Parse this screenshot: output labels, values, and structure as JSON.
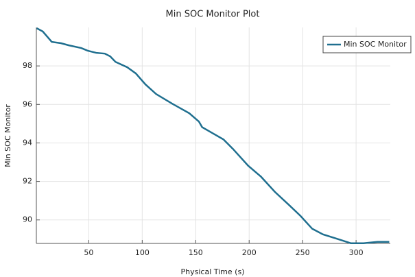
{
  "chart_data": {
    "type": "line",
    "title": "Min SOC Monitor Plot",
    "x_label": "Physical Time (s)",
    "y_label": "Min SOC Monitor",
    "x": [
      1.3,
      7,
      15.4,
      24,
      31.4,
      43,
      49,
      57,
      65,
      70,
      75,
      86,
      94,
      103,
      113,
      128,
      144,
      153,
      156,
      166,
      176,
      185,
      199,
      211,
      224,
      237,
      248,
      259,
      269,
      281,
      295,
      307,
      320,
      331
    ],
    "series": [
      {
        "name": "Min SOC Monitor",
        "color": "#1f6f8f",
        "values": [
          99.96,
          99.79,
          99.25,
          99.18,
          99.07,
          98.93,
          98.79,
          98.68,
          98.64,
          98.5,
          98.21,
          97.93,
          97.61,
          97.04,
          96.54,
          96.04,
          95.54,
          95.11,
          94.82,
          94.5,
          94.18,
          93.68,
          92.82,
          92.25,
          91.46,
          90.79,
          90.21,
          89.54,
          89.25,
          89.04,
          88.79,
          88.79,
          88.86,
          88.86
        ]
      }
    ],
    "xlim": [
      1,
      332
    ],
    "ylim": [
      88.78,
      100
    ],
    "xticks": [
      50,
      100,
      150,
      200,
      250,
      300
    ],
    "yticks": [
      90,
      92,
      94,
      96,
      98
    ],
    "grid": true,
    "legend": "top-right"
  }
}
